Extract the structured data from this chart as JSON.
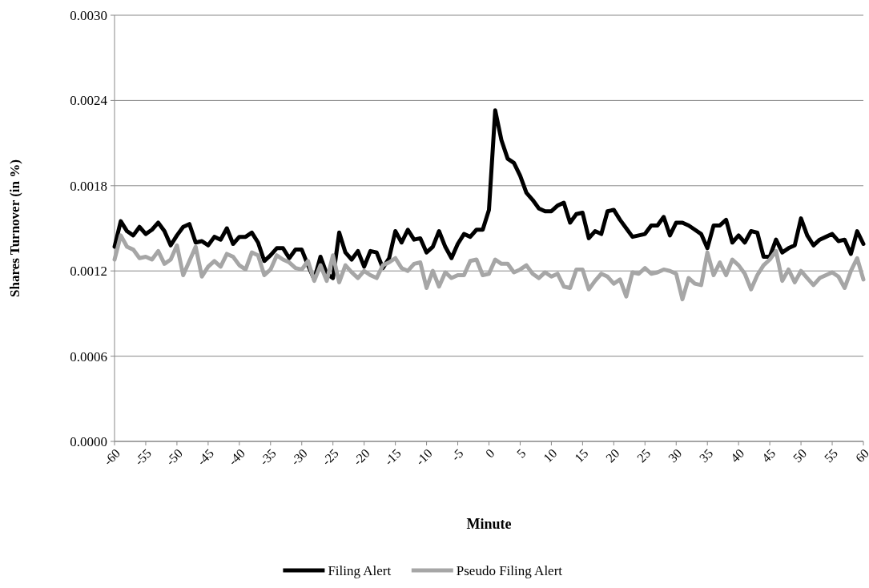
{
  "chart_data": {
    "type": "line",
    "xlabel": "Minute",
    "ylabel": "Shares Turnover (in %)",
    "x": [
      -60,
      -59,
      -58,
      -57,
      -56,
      -55,
      -54,
      -53,
      -52,
      -51,
      -50,
      -49,
      -48,
      -47,
      -46,
      -45,
      -44,
      -43,
      -42,
      -41,
      -40,
      -39,
      -38,
      -37,
      -36,
      -35,
      -34,
      -33,
      -32,
      -31,
      -30,
      -29,
      -28,
      -27,
      -26,
      -25,
      -24,
      -23,
      -22,
      -21,
      -20,
      -19,
      -18,
      -17,
      -16,
      -15,
      -14,
      -13,
      -12,
      -11,
      -10,
      -9,
      -8,
      -7,
      -6,
      -5,
      -4,
      -3,
      -2,
      -1,
      0,
      1,
      2,
      3,
      4,
      5,
      6,
      7,
      8,
      9,
      10,
      11,
      12,
      13,
      14,
      15,
      16,
      17,
      18,
      19,
      20,
      21,
      22,
      23,
      24,
      25,
      26,
      27,
      28,
      29,
      30,
      31,
      32,
      33,
      34,
      35,
      36,
      37,
      38,
      39,
      40,
      41,
      42,
      43,
      44,
      45,
      46,
      47,
      48,
      49,
      50,
      51,
      52,
      53,
      54,
      55,
      56,
      57,
      58,
      59,
      60
    ],
    "series": [
      {
        "name": "Filing Alert",
        "color": "#000000",
        "values": [
          0.00137,
          0.00155,
          0.00148,
          0.00145,
          0.00151,
          0.00146,
          0.00149,
          0.00154,
          0.00148,
          0.00138,
          0.00145,
          0.00151,
          0.00153,
          0.0014,
          0.00141,
          0.00138,
          0.00144,
          0.00142,
          0.0015,
          0.00139,
          0.00144,
          0.00144,
          0.00147,
          0.0014,
          0.00127,
          0.00131,
          0.00136,
          0.00136,
          0.00129,
          0.00135,
          0.00135,
          0.00124,
          0.00114,
          0.0013,
          0.00118,
          0.00115,
          0.00147,
          0.00133,
          0.00128,
          0.00134,
          0.00123,
          0.00134,
          0.00133,
          0.00122,
          0.00129,
          0.00148,
          0.0014,
          0.00149,
          0.00142,
          0.00143,
          0.00133,
          0.00137,
          0.00148,
          0.00137,
          0.00129,
          0.00139,
          0.00146,
          0.00144,
          0.00149,
          0.00149,
          0.00163,
          0.00233,
          0.00212,
          0.00199,
          0.00196,
          0.00187,
          0.00175,
          0.0017,
          0.00164,
          0.00162,
          0.00162,
          0.00166,
          0.00168,
          0.00154,
          0.0016,
          0.00161,
          0.00143,
          0.00148,
          0.00146,
          0.00162,
          0.00163,
          0.00156,
          0.0015,
          0.00144,
          0.00145,
          0.00146,
          0.00152,
          0.00152,
          0.00158,
          0.00145,
          0.00154,
          0.00154,
          0.00152,
          0.00149,
          0.00146,
          0.00136,
          0.00152,
          0.00152,
          0.00156,
          0.0014,
          0.00145,
          0.0014,
          0.00148,
          0.00147,
          0.0013,
          0.0013,
          0.00142,
          0.00133,
          0.00136,
          0.00138,
          0.00157,
          0.00145,
          0.00138,
          0.00142,
          0.00144,
          0.00146,
          0.00141,
          0.00142,
          0.00132,
          0.00148,
          0.00139
        ]
      },
      {
        "name": "Pseudo Filing Alert",
        "color": "#a6a6a6",
        "values": [
          0.00128,
          0.00145,
          0.00137,
          0.00135,
          0.00129,
          0.0013,
          0.00128,
          0.00134,
          0.00125,
          0.00128,
          0.00138,
          0.00117,
          0.00127,
          0.00137,
          0.00116,
          0.00123,
          0.00127,
          0.00123,
          0.00132,
          0.0013,
          0.00124,
          0.00121,
          0.00133,
          0.00131,
          0.00117,
          0.00121,
          0.00131,
          0.00128,
          0.00126,
          0.00122,
          0.00121,
          0.00127,
          0.00113,
          0.00124,
          0.00113,
          0.00131,
          0.00112,
          0.00124,
          0.00119,
          0.00115,
          0.0012,
          0.00117,
          0.00115,
          0.00124,
          0.00126,
          0.00129,
          0.00122,
          0.0012,
          0.00125,
          0.00126,
          0.00108,
          0.0012,
          0.00109,
          0.00119,
          0.00115,
          0.00117,
          0.00117,
          0.00127,
          0.00128,
          0.00117,
          0.00118,
          0.00128,
          0.00125,
          0.00125,
          0.00119,
          0.00121,
          0.00124,
          0.00118,
          0.00115,
          0.00119,
          0.00116,
          0.00118,
          0.00109,
          0.00108,
          0.00121,
          0.00121,
          0.00107,
          0.00113,
          0.00118,
          0.00116,
          0.00111,
          0.00114,
          0.00102,
          0.00119,
          0.00118,
          0.00122,
          0.00118,
          0.00119,
          0.00121,
          0.0012,
          0.00118,
          0.001,
          0.00115,
          0.00111,
          0.0011,
          0.00133,
          0.00117,
          0.00126,
          0.00117,
          0.00128,
          0.00124,
          0.00118,
          0.00107,
          0.00117,
          0.00124,
          0.00128,
          0.00134,
          0.00113,
          0.00121,
          0.00112,
          0.0012,
          0.00115,
          0.0011,
          0.00115,
          0.00117,
          0.00119,
          0.00116,
          0.00108,
          0.0012,
          0.00129,
          0.00114
        ]
      }
    ],
    "xlim": [
      -60,
      60
    ],
    "xticks": [
      -60,
      -55,
      -50,
      -45,
      -40,
      -35,
      -30,
      -25,
      -20,
      -15,
      -10,
      -5,
      0,
      5,
      10,
      15,
      20,
      25,
      30,
      35,
      40,
      45,
      50,
      55,
      60
    ],
    "ylim": [
      0,
      0.003
    ],
    "yticks": [
      {
        "value": 0,
        "label": "0.0000"
      },
      {
        "value": 0.0006,
        "label": "0.0006"
      },
      {
        "value": 0.0012,
        "label": "0.0012"
      },
      {
        "value": 0.0018,
        "label": "0.0018"
      },
      {
        "value": 0.0024,
        "label": "0.0024"
      },
      {
        "value": 0.003,
        "label": "0.0030"
      }
    ],
    "grid": "y",
    "legend": "bottom",
    "marker": "none",
    "line_style": "solid"
  }
}
